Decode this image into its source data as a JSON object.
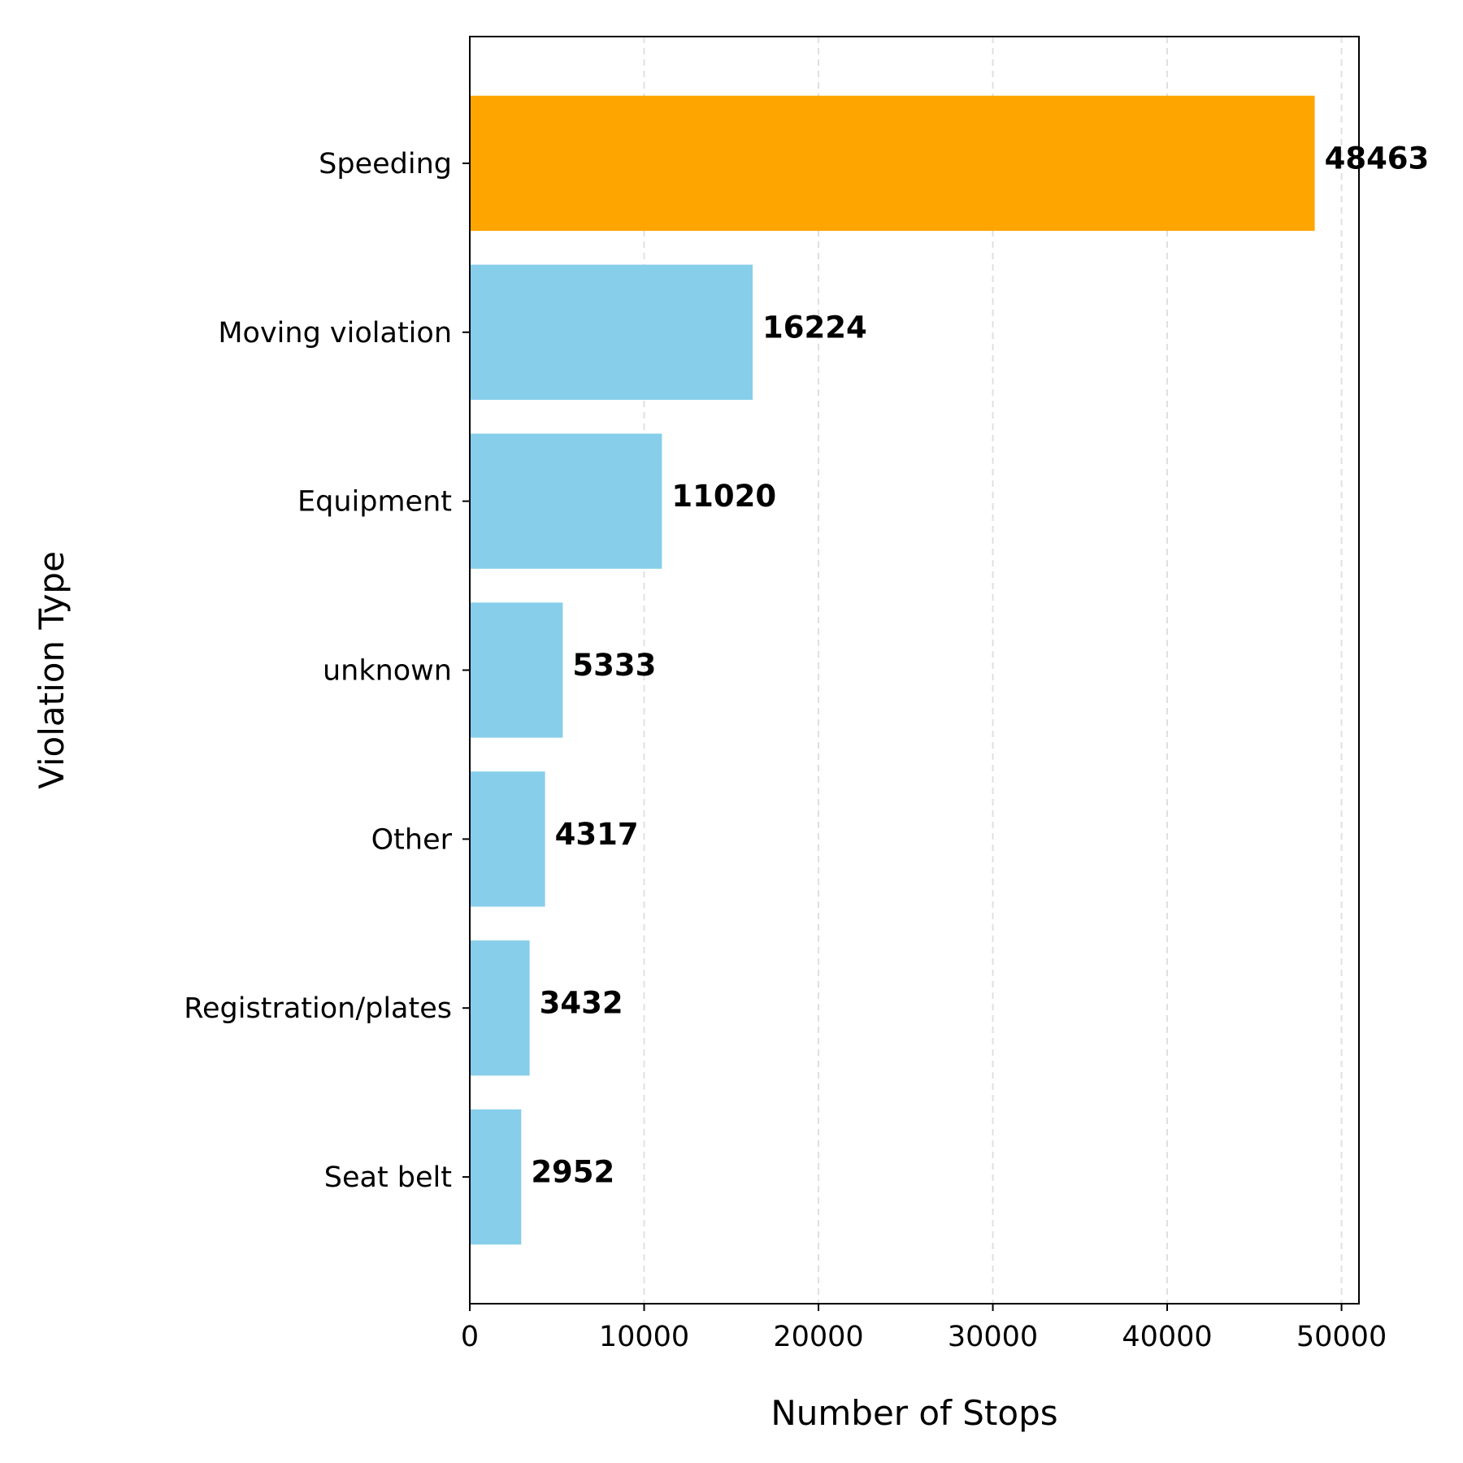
{
  "chart_data": {
    "type": "bar",
    "orientation": "horizontal",
    "categories": [
      "Speeding",
      "Moving violation",
      "Equipment",
      "unknown",
      "Other",
      "Registration/plates",
      "Seat belt"
    ],
    "values": [
      48463,
      16224,
      11020,
      5333,
      4317,
      3432,
      2952
    ],
    "colors": [
      "#ffa500",
      "#87ceeb",
      "#87ceeb",
      "#87ceeb",
      "#87ceeb",
      "#87ceeb",
      "#87ceeb"
    ],
    "xlabel": "Number of Stops",
    "ylabel": "Violation Type",
    "xlim": [
      0,
      51000
    ],
    "xticks": [
      0,
      10000,
      20000,
      30000,
      40000,
      50000
    ],
    "grid": "x, dashed",
    "data_labels": true
  }
}
